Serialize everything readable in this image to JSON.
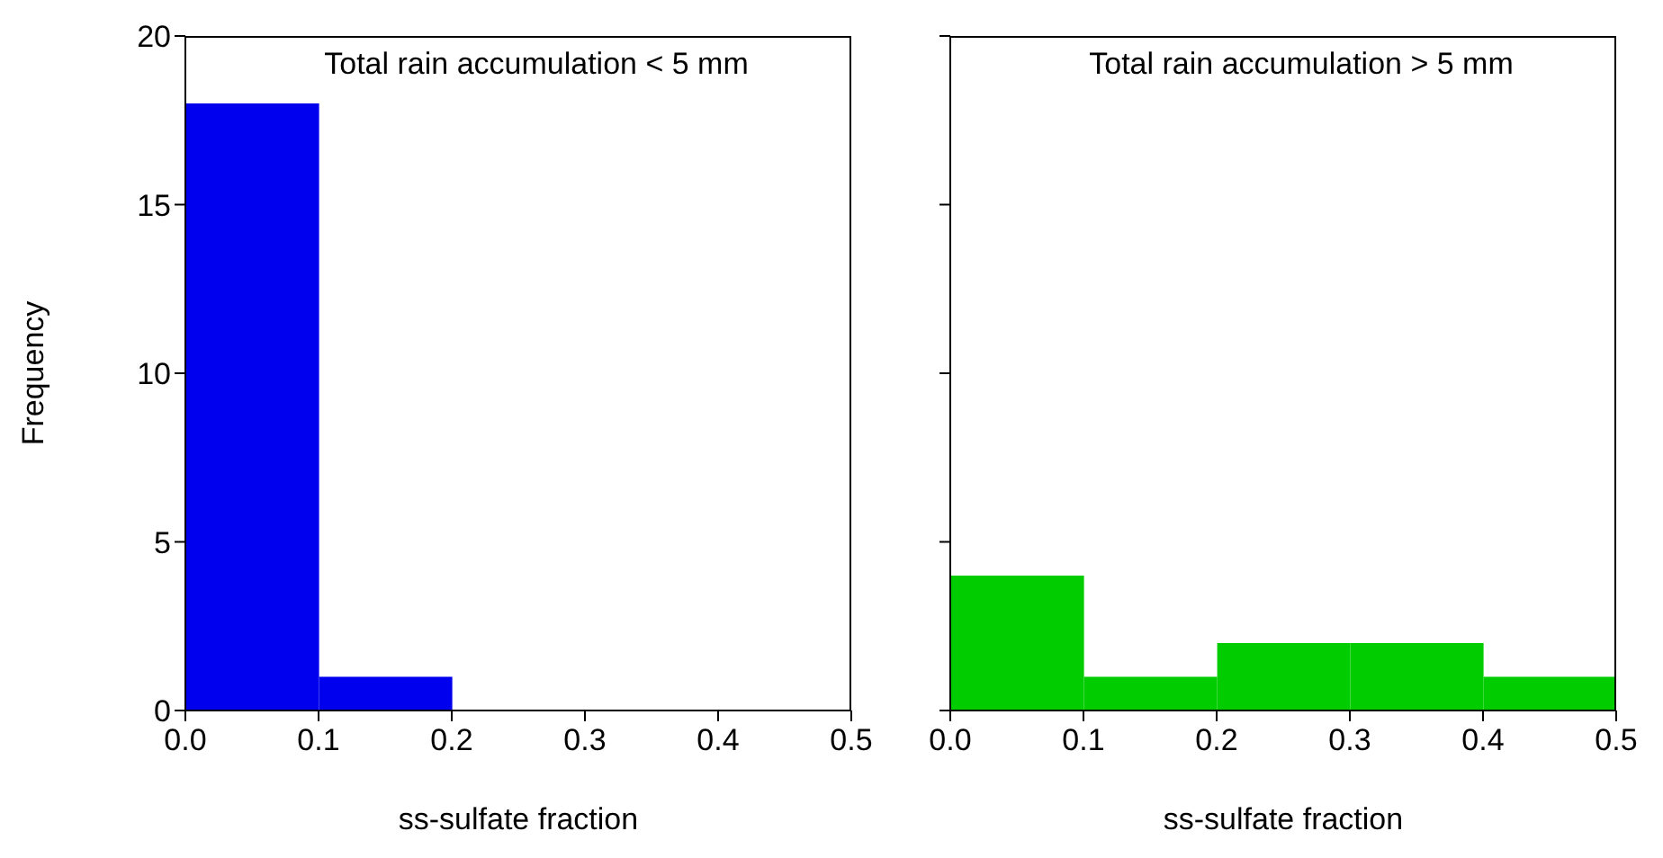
{
  "chart_data": [
    {
      "type": "histogram",
      "title": "Total rain accumulation < 5 mm",
      "xlabel": "ss-sulfate fraction",
      "ylabel": "Frequency",
      "bins": [
        0,
        0.1,
        0.2,
        0.3,
        0.4,
        0.5
      ],
      "values": [
        18,
        1,
        0,
        0,
        0
      ],
      "color": "#0000ee",
      "xlim": [
        0,
        0.5
      ],
      "xticks": [
        {
          "value": 0,
          "label": "0.0"
        },
        0.1,
        0.2,
        0.3,
        0.4,
        0.5
      ],
      "ylim": [
        0,
        20
      ],
      "yticks": [
        0,
        5,
        10,
        15,
        20
      ]
    },
    {
      "type": "histogram",
      "title": "Total rain accumulation > 5 mm",
      "xlabel": "ss-sulfate fraction",
      "bins": [
        0,
        0.1,
        0.2,
        0.3,
        0.4,
        0.5
      ],
      "values": [
        4,
        1,
        2,
        2,
        1
      ],
      "color": "#00cc00",
      "xlim": [
        0,
        0.5
      ],
      "xticks": [
        {
          "value": 0,
          "label": "0.0"
        },
        0.1,
        0.2,
        0.3,
        0.4,
        0.5
      ],
      "ylim": [
        0,
        20
      ],
      "yticks": [
        0,
        5,
        10,
        15,
        20
      ],
      "tick_labels": "x"
    }
  ]
}
